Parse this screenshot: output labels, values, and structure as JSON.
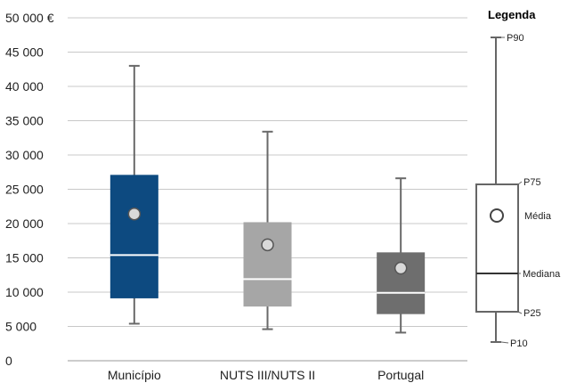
{
  "chart_data": {
    "type": "boxplot",
    "title": "",
    "xlabel": "",
    "ylabel": "",
    "ylim": [
      0,
      50000
    ],
    "yticks": [
      0,
      5000,
      10000,
      15000,
      20000,
      25000,
      30000,
      35000,
      40000,
      45000,
      50000
    ],
    "ytick_labels": [
      "0",
      "5 000",
      "10 000",
      "15 000",
      "20 000",
      "25 000",
      "30 000",
      "35 000",
      "40 000",
      "45 000",
      "50 000 €"
    ],
    "grid": true,
    "categories": [
      "Município",
      "NUTS III/NUTS II",
      "Portugal"
    ],
    "colors": [
      "#0d4a80",
      "#a6a6a6",
      "#6e6e6e"
    ],
    "boxes": [
      {
        "name": "Município",
        "p10": 5400,
        "p25": 9100,
        "median": 15400,
        "mean": 21400,
        "p75": 27100,
        "p90": 43000
      },
      {
        "name": "NUTS III/NUTS II",
        "p10": 4600,
        "p25": 7900,
        "median": 11900,
        "mean": 16900,
        "p75": 20200,
        "p90": 33400
      },
      {
        "name": "Portugal",
        "p10": 4100,
        "p25": 6800,
        "median": 9900,
        "mean": 13500,
        "p75": 15800,
        "p90": 26600
      }
    ]
  },
  "legend": {
    "title": "Legenda",
    "p90": "P90",
    "p75": "P75",
    "media": "Média",
    "mediana": "Mediana",
    "p25": "P25",
    "p10": "P10"
  }
}
